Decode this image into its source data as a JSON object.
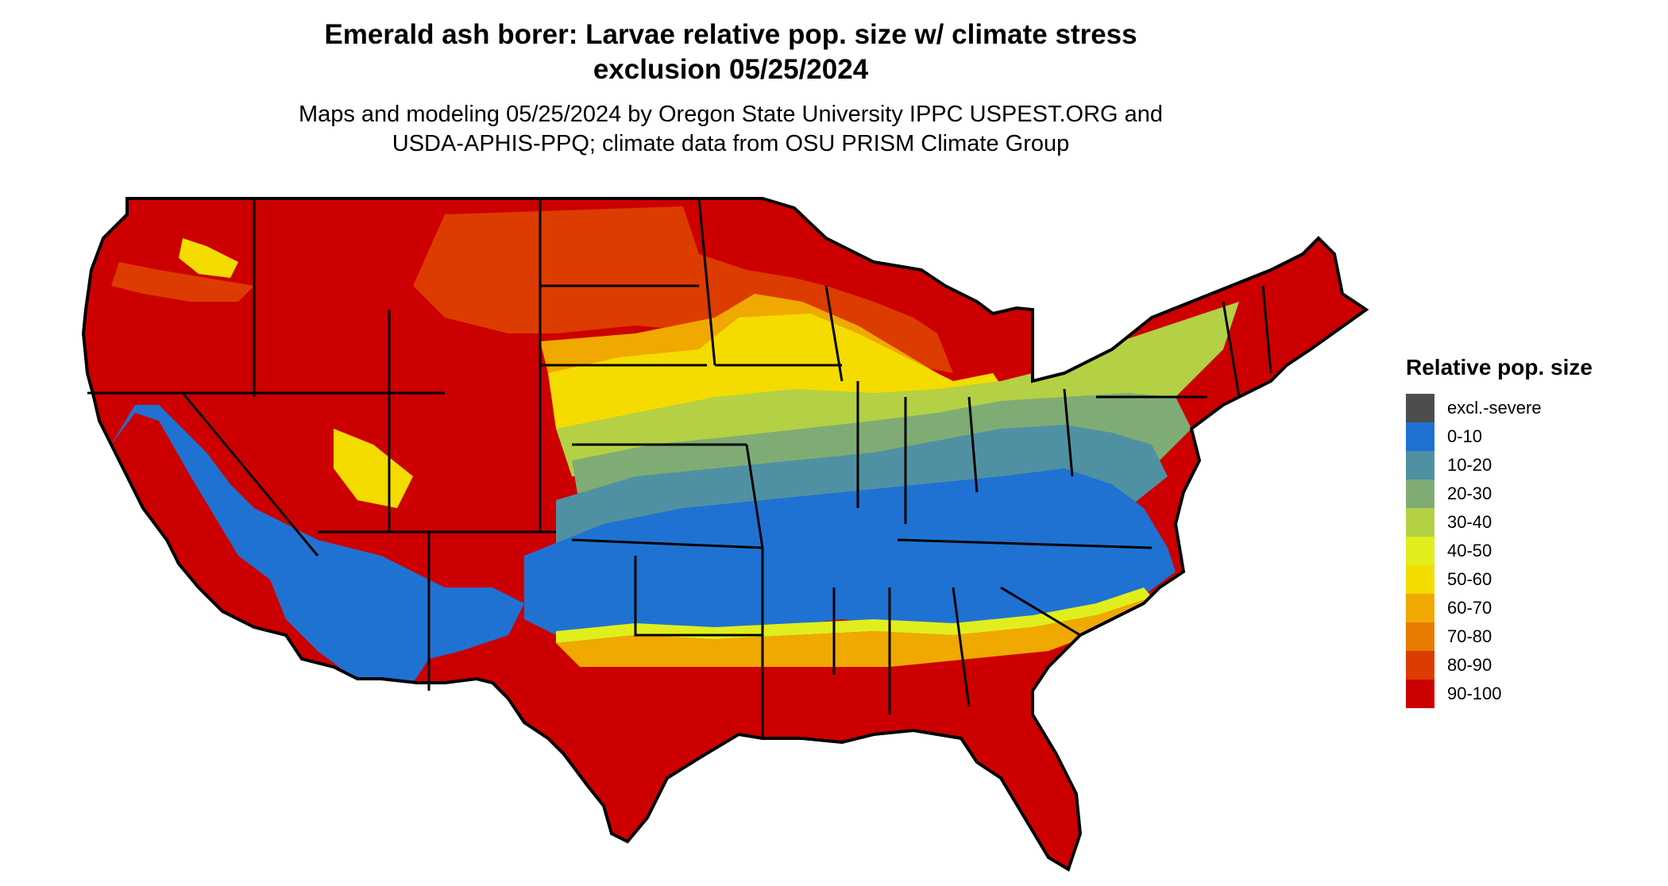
{
  "title": {
    "line1": "Emerald ash borer: Larvae relative pop. size w/ climate stress",
    "line2": "exclusion 05/25/2024"
  },
  "subtitle": {
    "line1": "Maps and modeling 05/25/2024 by Oregon State University IPPC USPEST.ORG and",
    "line2": "USDA-APHIS-PPQ; climate data from OSU PRISM Climate Group"
  },
  "legend": {
    "title": "Relative pop. size",
    "items": [
      {
        "label": "excl.-severe",
        "color": "#4d4d4d"
      },
      {
        "label": "0-10",
        "color": "#1f72d2"
      },
      {
        "label": "10-20",
        "color": "#4f91a3"
      },
      {
        "label": "20-30",
        "color": "#7fac75"
      },
      {
        "label": "30-40",
        "color": "#b4d045"
      },
      {
        "label": "40-50",
        "color": "#e1ee1d"
      },
      {
        "label": "50-60",
        "color": "#f5dc00"
      },
      {
        "label": "60-70",
        "color": "#efa900"
      },
      {
        "label": "70-80",
        "color": "#e77b00"
      },
      {
        "label": "80-90",
        "color": "#dc3c00"
      },
      {
        "label": "90-100",
        "color": "#cc0000"
      }
    ]
  },
  "map": {
    "region": "Continental United States",
    "background_class": "90-100",
    "zones": [
      {
        "name": "Northern Great Plains / Upper Midwest",
        "class": "80-90"
      },
      {
        "name": "Nebraska / Iowa / Wisconsin / Michigan",
        "class": "50-60"
      },
      {
        "name": "Kansas / Missouri / Illinois / Ohio Valley",
        "class": "20-30"
      },
      {
        "name": "Northeast / Mid-Atlantic",
        "class": "30-40"
      },
      {
        "name": "Southern Plains / Mid-South / Carolinas",
        "class": "0-10"
      },
      {
        "name": "California Central Valley / Desert Southwest",
        "class": "0-10"
      },
      {
        "name": "Gulf Coast transition",
        "class": "60-70"
      },
      {
        "name": "Texas / Gulf Coast / Florida",
        "class": "90-100"
      },
      {
        "name": "Pacific Northwest basins",
        "class": "50-60"
      }
    ]
  }
}
